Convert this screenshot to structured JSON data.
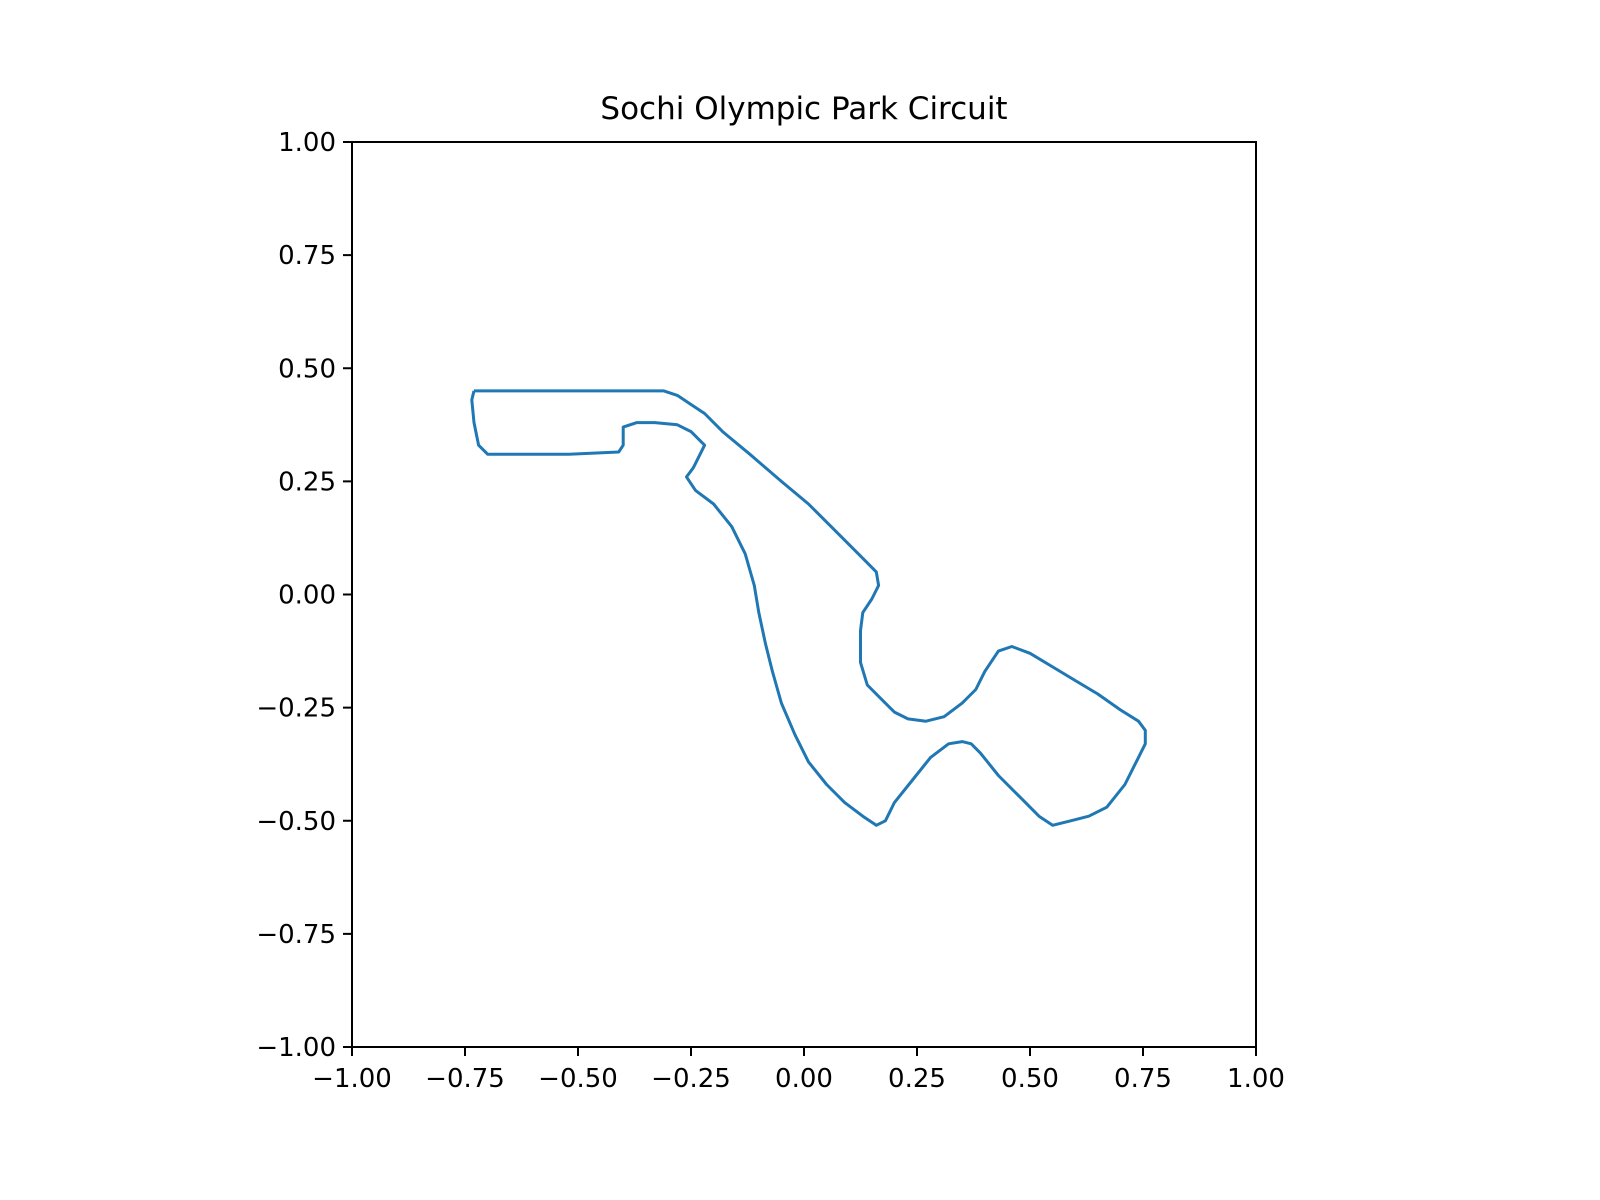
{
  "chart_data": {
    "type": "line",
    "title": "Sochi Olympic Park Circuit",
    "xlabel": "",
    "ylabel": "",
    "xlim": [
      -1.0,
      1.0
    ],
    "ylim": [
      -1.0,
      1.0
    ],
    "xticks": [
      "−1.00",
      "−0.75",
      "−0.50",
      "−0.25",
      "0.00",
      "0.25",
      "0.50",
      "0.75",
      "1.00"
    ],
    "yticks": [
      "1.00",
      "0.75",
      "0.50",
      "0.25",
      "0.00",
      "−0.25",
      "−0.50",
      "−0.75",
      "−1.00"
    ],
    "grid": false,
    "series": [
      {
        "color": "#1f77b4",
        "points": [
          [
            -0.73,
            0.45
          ],
          [
            -0.6,
            0.45
          ],
          [
            -0.45,
            0.45
          ],
          [
            -0.31,
            0.45
          ],
          [
            -0.28,
            0.44
          ],
          [
            -0.25,
            0.42
          ],
          [
            -0.22,
            0.4
          ],
          [
            -0.18,
            0.36
          ],
          [
            -0.12,
            0.31
          ],
          [
            -0.05,
            0.25
          ],
          [
            0.01,
            0.2
          ],
          [
            0.06,
            0.15
          ],
          [
            0.1,
            0.11
          ],
          [
            0.13,
            0.08
          ],
          [
            0.16,
            0.05
          ],
          [
            0.165,
            0.02
          ],
          [
            0.15,
            -0.01
          ],
          [
            0.13,
            -0.04
          ],
          [
            0.125,
            -0.08
          ],
          [
            0.125,
            -0.15
          ],
          [
            0.14,
            -0.2
          ],
          [
            0.17,
            -0.23
          ],
          [
            0.2,
            -0.26
          ],
          [
            0.23,
            -0.275
          ],
          [
            0.27,
            -0.28
          ],
          [
            0.31,
            -0.27
          ],
          [
            0.35,
            -0.24
          ],
          [
            0.38,
            -0.21
          ],
          [
            0.4,
            -0.17
          ],
          [
            0.43,
            -0.125
          ],
          [
            0.46,
            -0.115
          ],
          [
            0.5,
            -0.13
          ],
          [
            0.55,
            -0.16
          ],
          [
            0.6,
            -0.19
          ],
          [
            0.65,
            -0.22
          ],
          [
            0.7,
            -0.255
          ],
          [
            0.74,
            -0.28
          ],
          [
            0.755,
            -0.3
          ],
          [
            0.755,
            -0.33
          ],
          [
            0.74,
            -0.36
          ],
          [
            0.71,
            -0.42
          ],
          [
            0.67,
            -0.47
          ],
          [
            0.63,
            -0.49
          ],
          [
            0.59,
            -0.5
          ],
          [
            0.55,
            -0.51
          ],
          [
            0.52,
            -0.49
          ],
          [
            0.48,
            -0.45
          ],
          [
            0.43,
            -0.4
          ],
          [
            0.39,
            -0.35
          ],
          [
            0.37,
            -0.33
          ],
          [
            0.35,
            -0.325
          ],
          [
            0.32,
            -0.33
          ],
          [
            0.28,
            -0.36
          ],
          [
            0.24,
            -0.41
          ],
          [
            0.2,
            -0.46
          ],
          [
            0.18,
            -0.5
          ],
          [
            0.16,
            -0.51
          ],
          [
            0.13,
            -0.49
          ],
          [
            0.09,
            -0.46
          ],
          [
            0.05,
            -0.42
          ],
          [
            0.01,
            -0.37
          ],
          [
            -0.02,
            -0.31
          ],
          [
            -0.05,
            -0.24
          ],
          [
            -0.07,
            -0.17
          ],
          [
            -0.085,
            -0.11
          ],
          [
            -0.1,
            -0.04
          ],
          [
            -0.11,
            0.02
          ],
          [
            -0.13,
            0.09
          ],
          [
            -0.16,
            0.15
          ],
          [
            -0.2,
            0.2
          ],
          [
            -0.24,
            0.23
          ],
          [
            -0.26,
            0.26
          ],
          [
            -0.245,
            0.28
          ],
          [
            -0.235,
            0.3
          ],
          [
            -0.22,
            0.33
          ],
          [
            -0.25,
            0.36
          ],
          [
            -0.28,
            0.375
          ],
          [
            -0.33,
            0.38
          ],
          [
            -0.37,
            0.38
          ],
          [
            -0.4,
            0.37
          ],
          [
            -0.4,
            0.33
          ],
          [
            -0.41,
            0.315
          ],
          [
            -0.52,
            0.31
          ],
          [
            -0.6,
            0.31
          ],
          [
            -0.7,
            0.31
          ],
          [
            -0.72,
            0.33
          ],
          [
            -0.73,
            0.38
          ],
          [
            -0.735,
            0.43
          ],
          [
            -0.73,
            0.45
          ]
        ]
      }
    ]
  }
}
